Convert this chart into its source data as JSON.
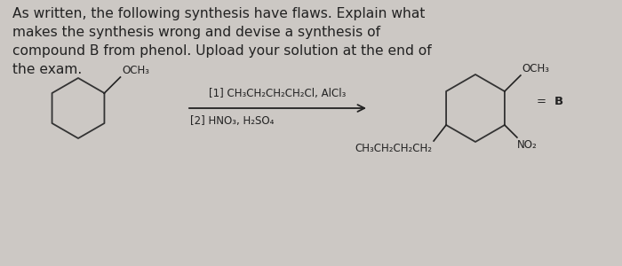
{
  "background_color": "#ccc8c4",
  "text_color": "#222222",
  "header_text": "As written, the following synthesis have flaws. Explain what\nmakes the synthesis wrong and devise a synthesis of\ncompound B from phenol. Upload your solution at the end of\nthe exam.",
  "header_fontsize": 11.2,
  "reaction_step1": "[1] CH₃CH₂CH₂CH₂Cl, AlCl₃",
  "reaction_step2": "[2] HNO₃, H₂SO₄",
  "reactant_och3": "OCH₃",
  "product_och3": "OCH₃",
  "product_no2": "NO₂",
  "product_chain": "CH₃CH₂CH₂CH₂",
  "equals_sign": "=",
  "label_B": "B",
  "reaction_fontsize": 8.5
}
